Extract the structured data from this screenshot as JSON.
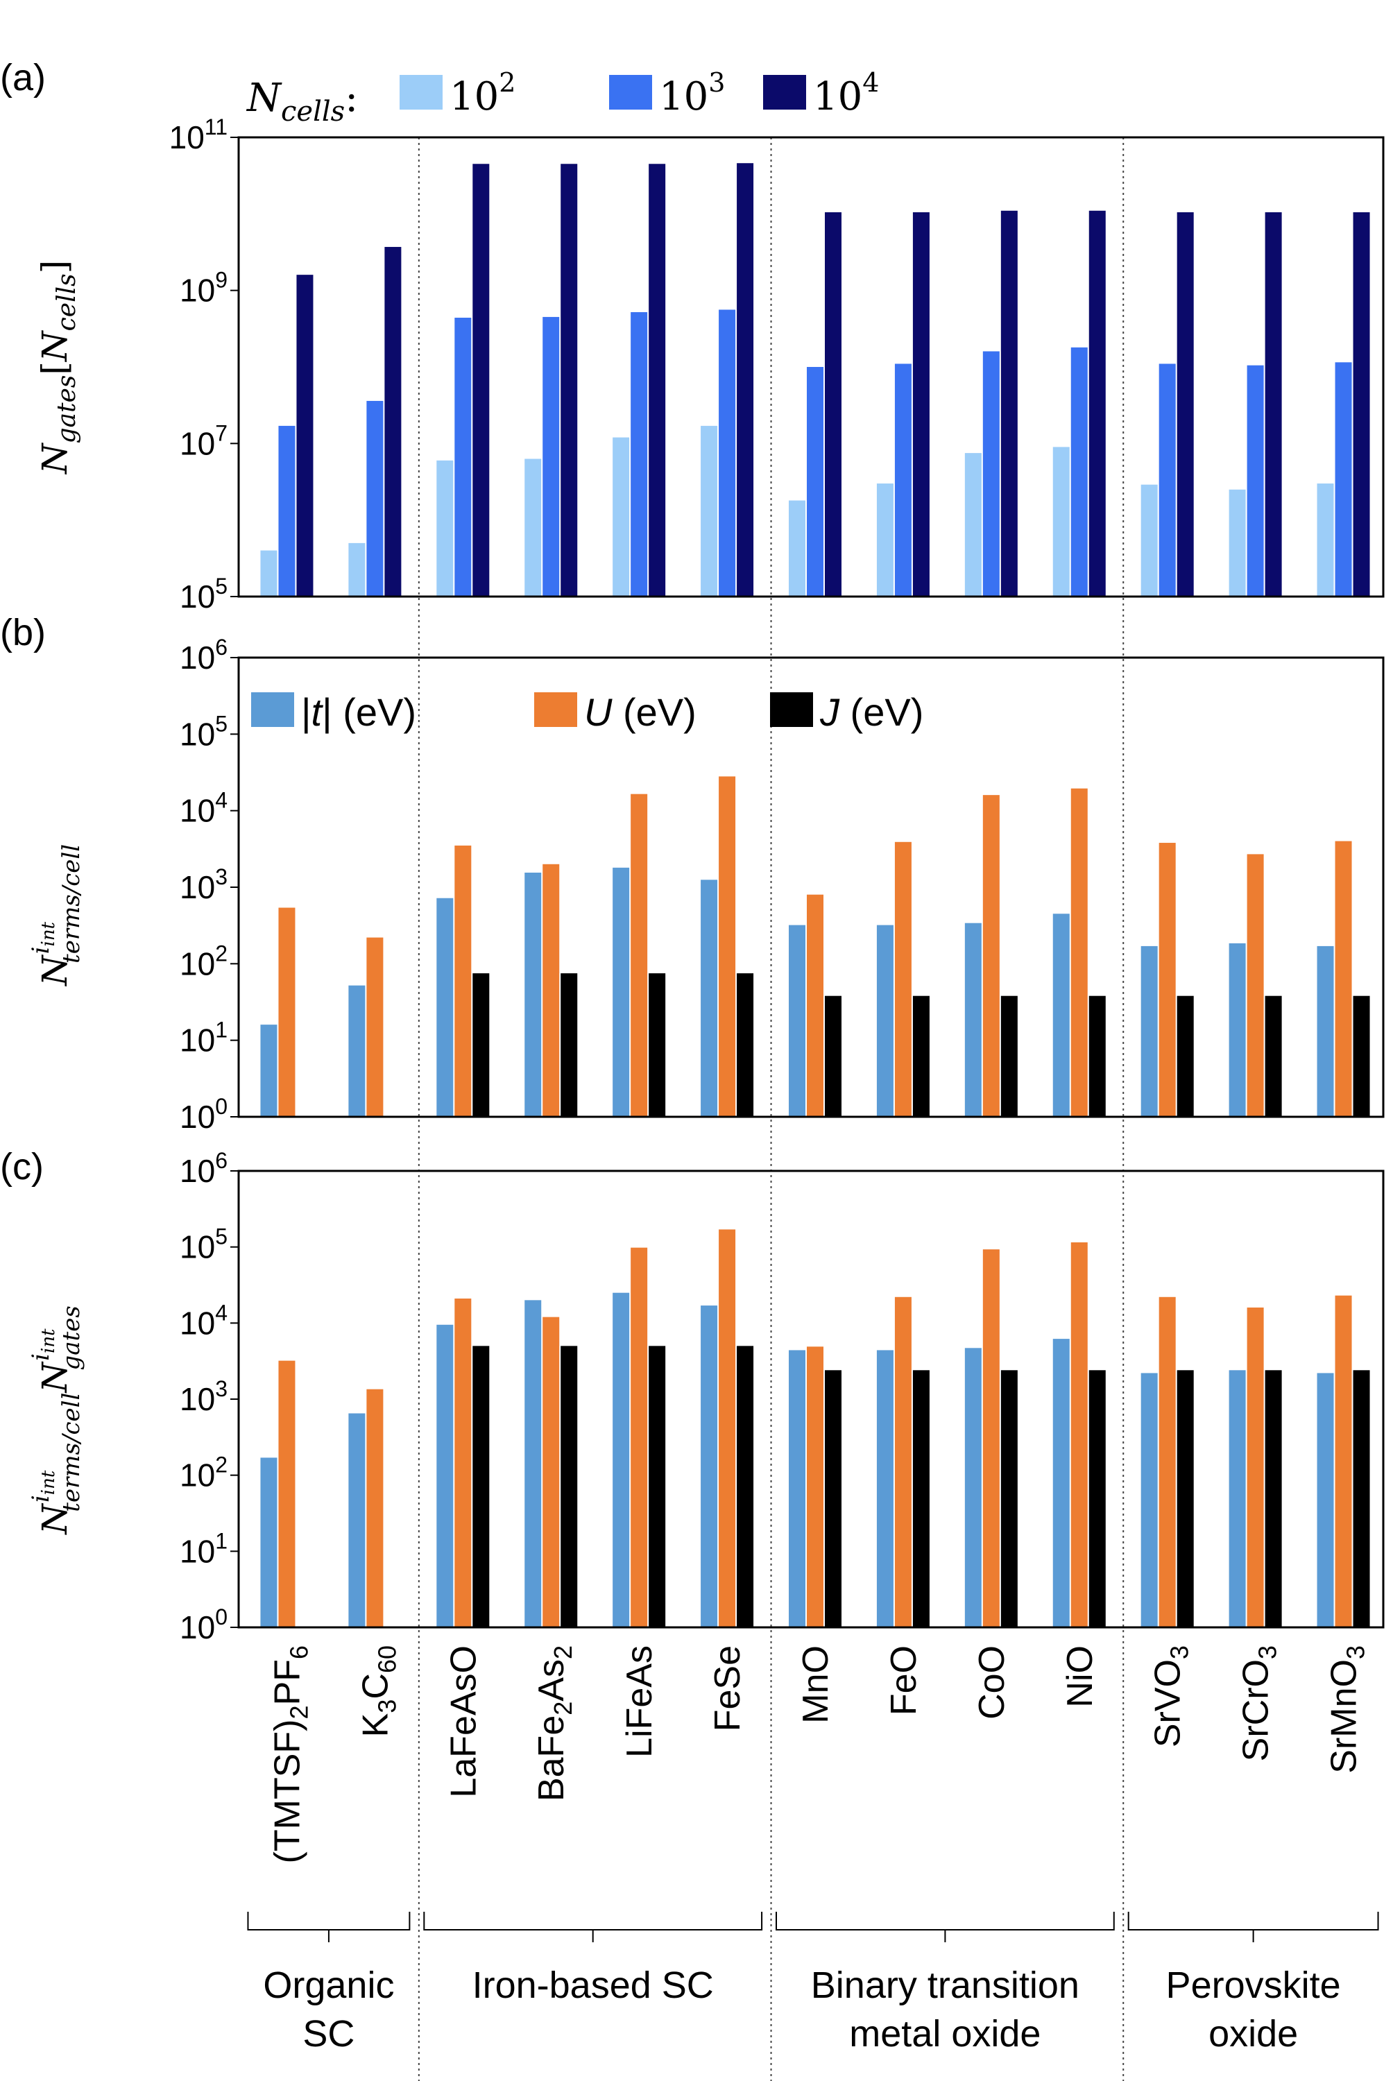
{
  "colors": {
    "n100": "#9ccdf8",
    "n1000": "#3a72f2",
    "n10000": "#0b0a6a",
    "t": "#5b9bd5",
    "U": "#ed7d31",
    "J": "#000000"
  },
  "categories": [
    "(TMTSF)2PF6",
    "K3C60",
    "LaFeAsO",
    "BaFe2As2",
    "LiFeAs",
    "FeSe",
    "MnO",
    "FeO",
    "CoO",
    "NiO",
    "SrVO3",
    "SrCrO3",
    "SrMnO3"
  ],
  "category_labels": [
    {
      "parts": [
        {
          "t": "(TMTSF)"
        },
        {
          "t": "2",
          "sub": true
        },
        {
          "t": "PF"
        },
        {
          "t": "6",
          "sub": true
        }
      ]
    },
    {
      "parts": [
        {
          "t": "K"
        },
        {
          "t": "3",
          "sub": true
        },
        {
          "t": "C"
        },
        {
          "t": "60",
          "sub": true
        }
      ]
    },
    {
      "parts": [
        {
          "t": "LaFeAsO"
        }
      ]
    },
    {
      "parts": [
        {
          "t": "BaFe"
        },
        {
          "t": "2",
          "sub": true
        },
        {
          "t": "As"
        },
        {
          "t": "2",
          "sub": true
        }
      ]
    },
    {
      "parts": [
        {
          "t": "LiFeAs"
        }
      ]
    },
    {
      "parts": [
        {
          "t": "FeSe"
        }
      ]
    },
    {
      "parts": [
        {
          "t": "MnO"
        }
      ]
    },
    {
      "parts": [
        {
          "t": "FeO"
        }
      ]
    },
    {
      "parts": [
        {
          "t": "CoO"
        }
      ]
    },
    {
      "parts": [
        {
          "t": "NiO"
        }
      ]
    },
    {
      "parts": [
        {
          "t": "SrVO"
        },
        {
          "t": "3",
          "sub": true
        }
      ]
    },
    {
      "parts": [
        {
          "t": "SrCrO"
        },
        {
          "t": "3",
          "sub": true
        }
      ]
    },
    {
      "parts": [
        {
          "t": "SrMnO"
        },
        {
          "t": "3",
          "sub": true
        }
      ]
    }
  ],
  "groups": [
    {
      "lines": [
        "Organic",
        "SC"
      ],
      "first": 0,
      "last": 1
    },
    {
      "lines": [
        "Iron-based SC"
      ],
      "first": 2,
      "last": 5
    },
    {
      "lines": [
        "Binary transition",
        "metal oxide"
      ],
      "first": 6,
      "last": 9
    },
    {
      "lines": [
        "Perovskite",
        "oxide"
      ],
      "first": 10,
      "last": 12
    }
  ],
  "chart_data": [
    {
      "panel": "(a)",
      "type": "bar",
      "log_scale": true,
      "ylim": [
        100000,
        100000000000
      ],
      "ytick_exponents": [
        5,
        7,
        9,
        11
      ],
      "ylabel": {
        "main": "N",
        "sub": "gates",
        "bracket_main": "N",
        "bracket_sub": "cells"
      },
      "legend": {
        "title_main": "N",
        "title_sub": "cells",
        "title_suffix": ":",
        "position": "top"
      },
      "series": [
        {
          "name": "10^2",
          "label_base": "10",
          "label_exp": "2",
          "color_key": "n100",
          "values": [
            400000,
            500000,
            6000000,
            6300000,
            12000000,
            17000000,
            1800000,
            3000000,
            7500000,
            9000000,
            2900000,
            2500000,
            3000000
          ]
        },
        {
          "name": "10^3",
          "label_base": "10",
          "label_exp": "3",
          "color_key": "n1000",
          "values": [
            17000000,
            36000000,
            440000000,
            450000000,
            520000000,
            560000000,
            100000000,
            110000000,
            160000000,
            180000000,
            110000000,
            105000000,
            115000000
          ]
        },
        {
          "name": "10^4",
          "label_base": "10",
          "label_exp": "4",
          "color_key": "n10000",
          "values": [
            1600000000,
            3700000000,
            45000000000,
            45000000000,
            45000000000,
            46000000000,
            10500000000,
            10500000000,
            11000000000,
            11000000000,
            10500000000,
            10500000000,
            10500000000
          ]
        }
      ]
    },
    {
      "panel": "(b)",
      "type": "bar",
      "log_scale": true,
      "ylim": [
        1,
        1000000
      ],
      "ytick_exponents": [
        0,
        1,
        2,
        3,
        4,
        5,
        6
      ],
      "ylabel": {
        "main": "N",
        "sub": "terms/cell",
        "sup": "i",
        "supsub": "int"
      },
      "legend": {
        "position": "top-left"
      },
      "series": [
        {
          "name": "|t| (eV)",
          "label_pre": "|",
          "label_ital": "t",
          "label_post": "|  (eV)",
          "color_key": "t",
          "values": [
            16,
            52,
            720,
            1550,
            1800,
            1250,
            320,
            320,
            340,
            450,
            170,
            185,
            170
          ]
        },
        {
          "name": "U (eV)",
          "label_pre": "",
          "label_ital": "U",
          "label_post": " (eV)",
          "color_key": "U",
          "values": [
            540,
            220,
            3500,
            2000,
            16500,
            28000,
            800,
            3900,
            16000,
            19500,
            3800,
            2700,
            4000
          ]
        },
        {
          "name": "J (eV)",
          "label_pre": "",
          "label_ital": "J",
          "label_post": "  (eV)",
          "color_key": "J",
          "values": [
            null,
            null,
            75,
            75,
            75,
            75,
            38,
            38,
            38,
            38,
            38,
            38,
            38
          ]
        }
      ]
    },
    {
      "panel": "(c)",
      "type": "bar",
      "log_scale": true,
      "ylim": [
        1,
        1000000
      ],
      "ytick_exponents": [
        0,
        1,
        2,
        3,
        4,
        5,
        6
      ],
      "ylabel": {
        "main": "N",
        "sub": "terms/cell",
        "sup": "i",
        "supsub": "int",
        "main2": "N",
        "sub2": "gates",
        "sup2": "i",
        "supsub2": "int"
      },
      "series": [
        {
          "name": "|t| (eV)",
          "color_key": "t",
          "values": [
            170,
            650,
            9500,
            20000,
            25000,
            17000,
            4400,
            4400,
            4700,
            6200,
            2200,
            2400,
            2200
          ]
        },
        {
          "name": "U (eV)",
          "color_key": "U",
          "values": [
            3200,
            1350,
            21000,
            12000,
            98000,
            170000,
            4900,
            22000,
            93000,
            115000,
            22000,
            16000,
            23000
          ]
        },
        {
          "name": "J (eV)",
          "color_key": "J",
          "values": [
            null,
            null,
            5000,
            5000,
            5000,
            5000,
            2400,
            2400,
            2400,
            2400,
            2400,
            2400,
            2400
          ]
        }
      ]
    }
  ]
}
